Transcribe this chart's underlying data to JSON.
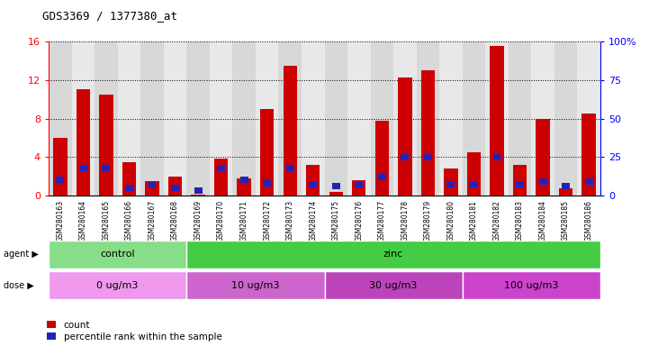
{
  "title": "GDS3369 / 1377380_at",
  "samples": [
    "GSM280163",
    "GSM280164",
    "GSM280165",
    "GSM280166",
    "GSM280167",
    "GSM280168",
    "GSM280169",
    "GSM280170",
    "GSM280171",
    "GSM280172",
    "GSM280173",
    "GSM280174",
    "GSM280175",
    "GSM280176",
    "GSM280177",
    "GSM280178",
    "GSM280179",
    "GSM280180",
    "GSM280181",
    "GSM280182",
    "GSM280183",
    "GSM280184",
    "GSM280185",
    "GSM280186"
  ],
  "count": [
    6.0,
    11.0,
    10.5,
    3.5,
    1.5,
    2.0,
    0.1,
    3.8,
    1.8,
    9.0,
    13.5,
    3.2,
    0.4,
    1.6,
    7.8,
    12.3,
    13.0,
    2.8,
    4.5,
    15.5,
    3.2,
    8.0,
    0.7,
    8.5
  ],
  "percentile": [
    10,
    18,
    18,
    5,
    7,
    5,
    3,
    18,
    10,
    8,
    18,
    7,
    6,
    7,
    12,
    25,
    25,
    7,
    7,
    25,
    7,
    9,
    6,
    9
  ],
  "bar_color": "#cc0000",
  "marker_color": "#2222bb",
  "ylim_left": [
    0,
    16
  ],
  "ylim_right": [
    0,
    100
  ],
  "yticks_left": [
    0,
    4,
    8,
    12,
    16
  ],
  "yticks_right": [
    0,
    25,
    50,
    75,
    100
  ],
  "agent_groups": [
    {
      "label": "control",
      "start": 0,
      "end": 6,
      "color": "#88dd88"
    },
    {
      "label": "zinc",
      "start": 6,
      "end": 24,
      "color": "#44cc44"
    }
  ],
  "dose_groups": [
    {
      "label": "0 ug/m3",
      "start": 0,
      "end": 6,
      "color": "#ee99ee"
    },
    {
      "label": "10 ug/m3",
      "start": 6,
      "end": 12,
      "color": "#cc66cc"
    },
    {
      "label": "30 ug/m3",
      "start": 12,
      "end": 18,
      "color": "#bb44bb"
    },
    {
      "label": "100 ug/m3",
      "start": 18,
      "end": 24,
      "color": "#cc44cc"
    }
  ],
  "legend_count_label": "count",
  "legend_pct_label": "percentile rank within the sample"
}
